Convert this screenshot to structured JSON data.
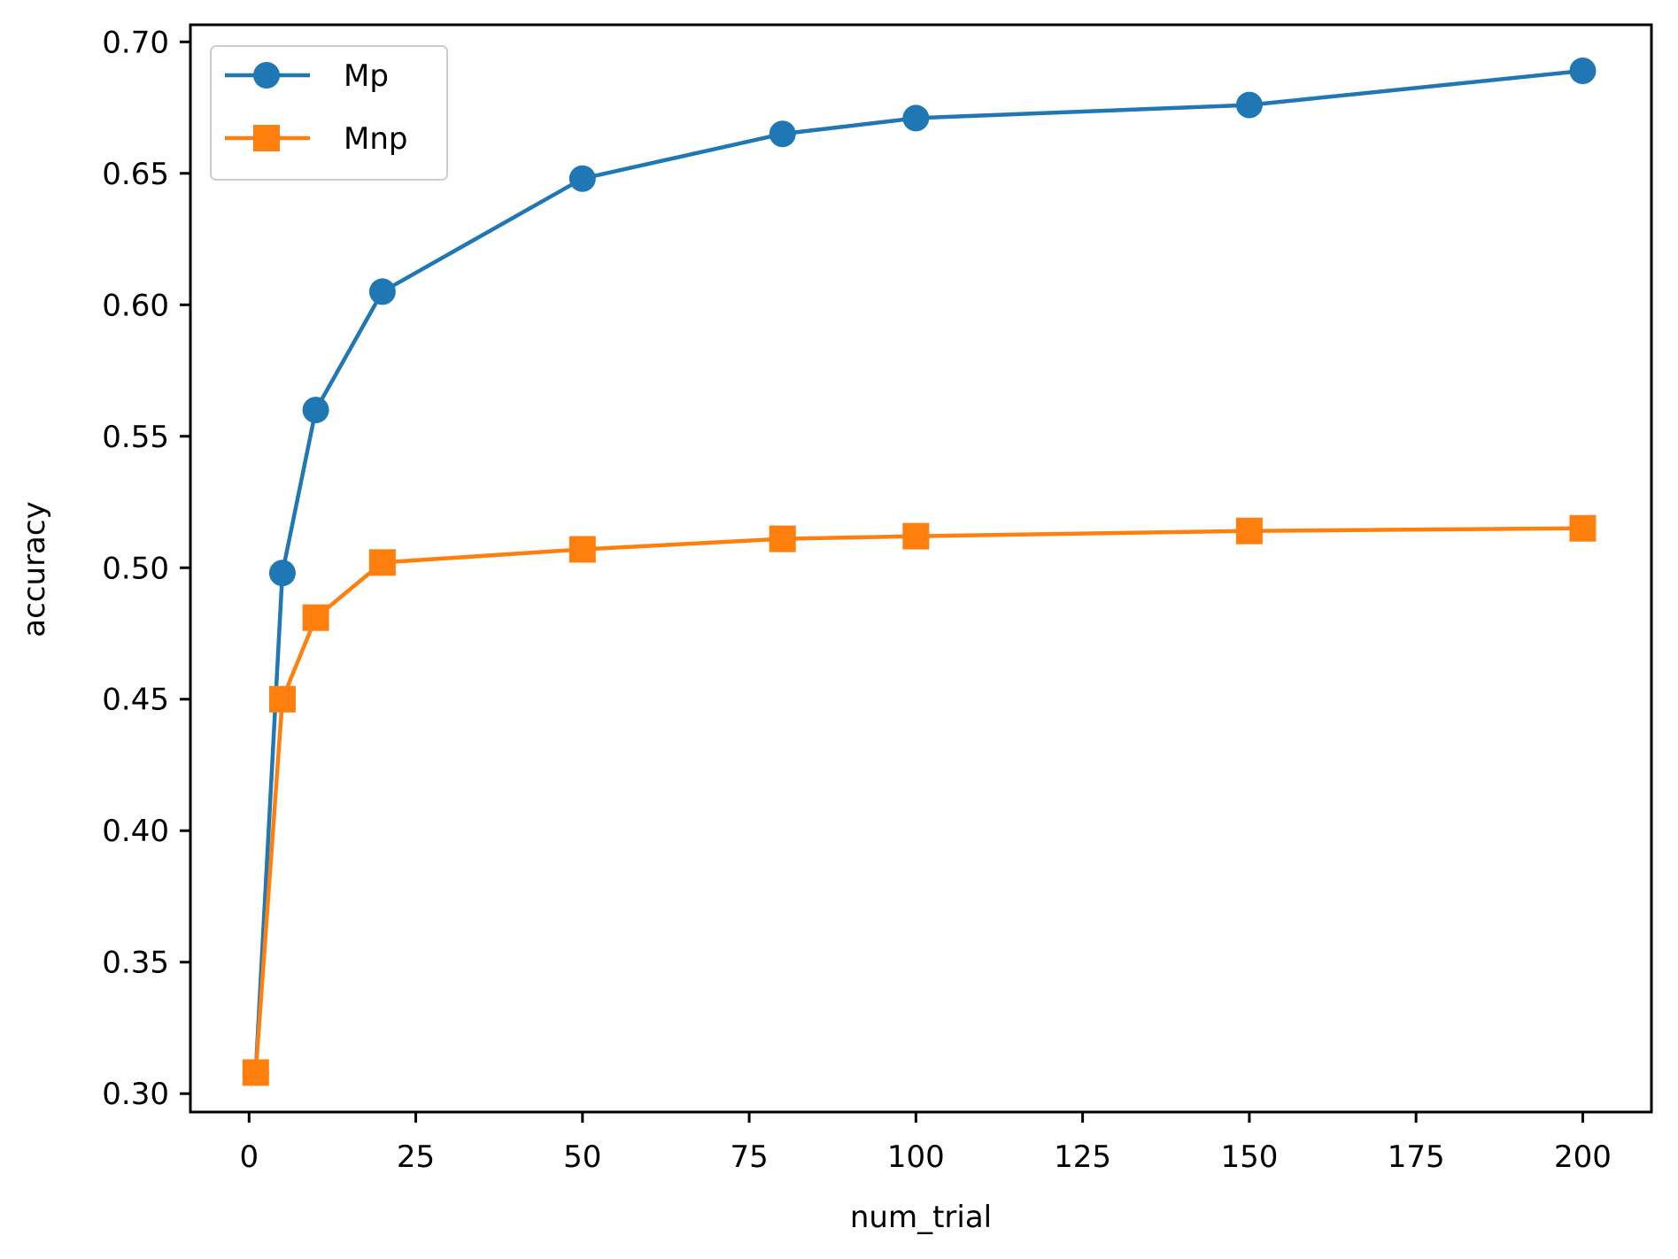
{
  "chart_data": {
    "type": "line",
    "title": "",
    "xlabel": "num_trial",
    "ylabel": "accuracy",
    "x": [
      1,
      5,
      10,
      20,
      50,
      80,
      100,
      150,
      200
    ],
    "series": [
      {
        "name": "Mp",
        "marker": "circle",
        "color": "#1f77b4",
        "values": [
          0.308,
          0.498,
          0.56,
          0.605,
          0.648,
          0.665,
          0.671,
          0.676,
          0.689
        ]
      },
      {
        "name": "Mnp",
        "marker": "square",
        "color": "#ff7f0e",
        "values": [
          0.308,
          0.45,
          0.481,
          0.502,
          0.507,
          0.511,
          0.512,
          0.514,
          0.515
        ]
      }
    ],
    "xticks": [
      0,
      25,
      50,
      75,
      100,
      125,
      150,
      175,
      200
    ],
    "xtick_labels": [
      "0",
      "25",
      "50",
      "75",
      "100",
      "125",
      "150",
      "175",
      "200"
    ],
    "yticks": [
      0.3,
      0.35,
      0.4,
      0.45,
      0.5,
      0.55,
      0.6,
      0.65,
      0.7
    ],
    "ytick_labels": [
      "0.30",
      "0.35",
      "0.40",
      "0.45",
      "0.50",
      "0.55",
      "0.60",
      "0.65",
      "0.70"
    ],
    "xlim": [
      -8.8,
      210.3
    ],
    "ylim": [
      0.293,
      0.7065
    ],
    "grid": false,
    "legend_position": "upper left"
  },
  "legend": {
    "items": [
      {
        "label": "Mp"
      },
      {
        "label": "Mnp"
      }
    ]
  }
}
